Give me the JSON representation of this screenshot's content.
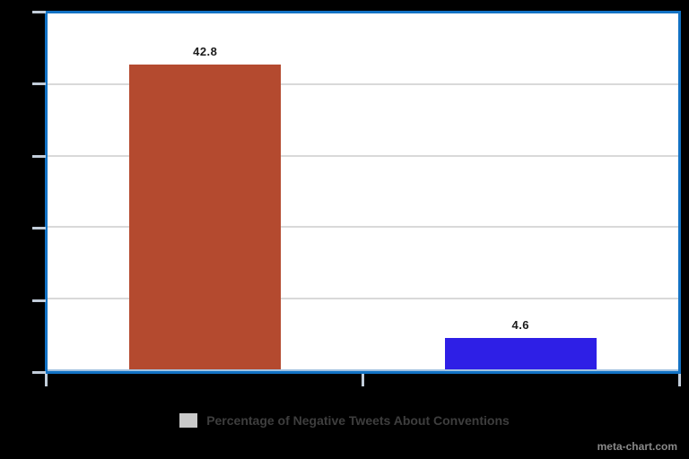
{
  "watermark": "meta-chart.com",
  "legend": {
    "label": "Percentage of Negative Tweets About Conventions",
    "swatch_color": "#c9c9c9",
    "text_color": "#3e3e3e"
  },
  "frame": {
    "page_background": "#000000",
    "plot_background": "#ffffff",
    "border_color": "#1272c4",
    "grid_color": "#d9d9d9",
    "tick_color": "#c2cdda",
    "axis_line_color": "#a3c2e0",
    "value_label_color": "#1a1a1a"
  },
  "chart_data": {
    "type": "bar",
    "title": "",
    "xlabel": "",
    "ylabel": "",
    "categories": [
      "",
      ""
    ],
    "series": [
      {
        "name": "Percentage of Negative Tweets About Conventions",
        "values": [
          42.8,
          4.6
        ]
      }
    ],
    "data_labels": [
      "42.8",
      "4.6"
    ],
    "bar_colors": [
      "#b44a2f",
      "#2e1fe6"
    ],
    "ylim": [
      0,
      50
    ],
    "y_tick_step": 10,
    "y_tick_count": 6,
    "x_tick_count": 3,
    "grid": true,
    "axis_tick_labels_visible": false,
    "legend_position": "bottom",
    "data_labels_visible": true
  }
}
